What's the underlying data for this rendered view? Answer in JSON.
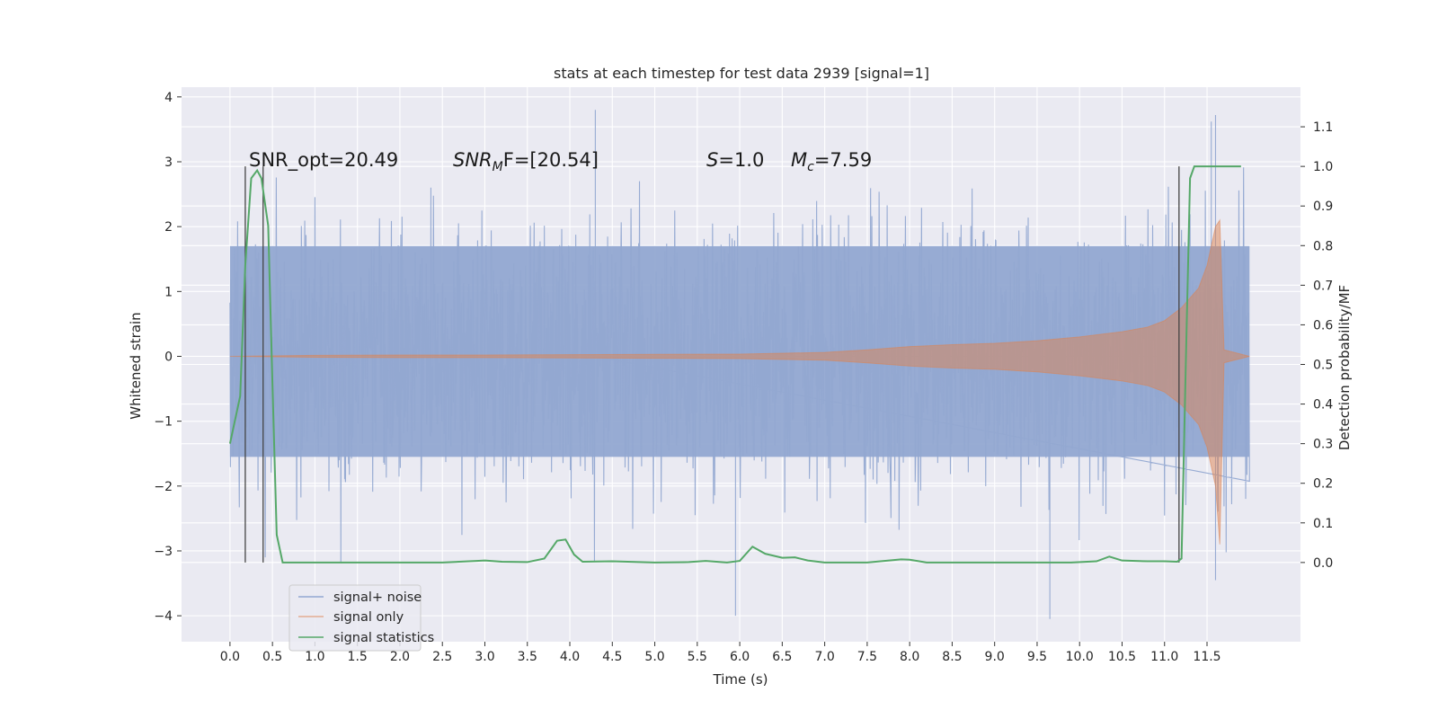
{
  "chart_data": {
    "type": "line",
    "title": "stats at each timestep for test data 2939 [signal=1]",
    "xlabel": "Time (s)",
    "ylabel": "Whitened strain",
    "y2label": "Detection probability/MF",
    "xlim": [
      -0.57,
      12.6
    ],
    "ylim": [
      -4.4,
      4.15
    ],
    "y2lim": [
      -0.2,
      1.2
    ],
    "x_ticks": [
      "0.0",
      "0.5",
      "1.0",
      "1.5",
      "2.0",
      "2.5",
      "3.0",
      "3.5",
      "4.0",
      "4.5",
      "5.0",
      "5.5",
      "6.0",
      "6.5",
      "7.0",
      "7.5",
      "8.0",
      "8.5",
      "9.0",
      "9.5",
      "10.0",
      "10.5",
      "11.0",
      "11.5"
    ],
    "y_ticks": [
      "−4",
      "−3",
      "−2",
      "−1",
      "0",
      "1",
      "2",
      "3",
      "4"
    ],
    "y2_ticks": [
      "0.0",
      "0.1",
      "0.2",
      "0.3",
      "0.4",
      "0.5",
      "0.6",
      "0.7",
      "0.8",
      "0.9",
      "1.0",
      "1.1"
    ],
    "grid": true,
    "legend_position": "lower-left",
    "annotations": {
      "snr_opt": "SNR_opt=20.49",
      "snr_mf_base": "SNR",
      "snr_mf_sub": "M",
      "snr_mf_rest": "F=[20.54]",
      "s_italic": "S",
      "s_rest": "=1.0",
      "mc_italic": "M",
      "mc_sub": "c",
      "mc_rest": "=7.59"
    },
    "series": [
      {
        "name": "signal+ noise",
        "color": "#92a8d1",
        "x_range": [
          0.0,
          12.0
        ],
        "noise_std": 0.95,
        "envelope": [
          -1.55,
          1.7
        ],
        "extreme_points": [
          [
            4.3,
            3.8
          ],
          [
            11.6,
            3.72
          ],
          [
            11.55,
            3.62
          ],
          [
            5.95,
            -4.0
          ],
          [
            9.65,
            -4.05
          ],
          [
            11.6,
            -3.45
          ]
        ]
      },
      {
        "name": "signal only",
        "color": "#dd8452",
        "points": [
          [
            0.0,
            0.0
          ],
          [
            1.0,
            0.015
          ],
          [
            2.0,
            0.02
          ],
          [
            3.0,
            0.02
          ],
          [
            4.0,
            0.025
          ],
          [
            5.0,
            0.03
          ],
          [
            6.0,
            0.035
          ],
          [
            7.0,
            0.06
          ],
          [
            7.5,
            0.1
          ],
          [
            8.0,
            0.15
          ],
          [
            8.5,
            0.18
          ],
          [
            9.0,
            0.2
          ],
          [
            9.5,
            0.24
          ],
          [
            10.0,
            0.3
          ],
          [
            10.5,
            0.38
          ],
          [
            10.8,
            0.45
          ],
          [
            11.0,
            0.55
          ],
          [
            11.2,
            0.75
          ],
          [
            11.4,
            1.05
          ],
          [
            11.5,
            1.4
          ],
          [
            11.6,
            2.0
          ],
          [
            11.65,
            2.1
          ],
          [
            11.7,
            0.1
          ],
          [
            12.0,
            0.0
          ]
        ]
      },
      {
        "name": "signal statistics",
        "color": "#55a868",
        "points": [
          [
            0.0,
            0.3
          ],
          [
            0.12,
            0.42
          ],
          [
            0.18,
            0.75
          ],
          [
            0.25,
            0.97
          ],
          [
            0.32,
            0.99
          ],
          [
            0.37,
            0.97
          ],
          [
            0.45,
            0.85
          ],
          [
            0.5,
            0.45
          ],
          [
            0.55,
            0.07
          ],
          [
            0.62,
            0.0
          ],
          [
            1.0,
            0.0
          ],
          [
            2.0,
            0.0
          ],
          [
            2.5,
            0.0
          ],
          [
            2.9,
            0.004
          ],
          [
            3.0,
            0.005
          ],
          [
            3.2,
            0.002
          ],
          [
            3.5,
            0.001
          ],
          [
            3.7,
            0.01
          ],
          [
            3.85,
            0.055
          ],
          [
            3.95,
            0.058
          ],
          [
            4.05,
            0.02
          ],
          [
            4.15,
            0.002
          ],
          [
            4.5,
            0.003
          ],
          [
            5.0,
            0.0
          ],
          [
            5.4,
            0.001
          ],
          [
            5.6,
            0.004
          ],
          [
            5.85,
            0.0
          ],
          [
            6.0,
            0.004
          ],
          [
            6.1,
            0.028
          ],
          [
            6.15,
            0.04
          ],
          [
            6.3,
            0.022
          ],
          [
            6.5,
            0.012
          ],
          [
            6.65,
            0.013
          ],
          [
            6.8,
            0.005
          ],
          [
            7.0,
            0.0
          ],
          [
            7.5,
            0.0
          ],
          [
            7.9,
            0.008
          ],
          [
            8.0,
            0.007
          ],
          [
            8.2,
            0.0
          ],
          [
            9.0,
            0.0
          ],
          [
            9.4,
            0.0
          ],
          [
            9.6,
            0.0
          ],
          [
            9.9,
            0.0
          ],
          [
            10.2,
            0.003
          ],
          [
            10.35,
            0.015
          ],
          [
            10.5,
            0.005
          ],
          [
            10.8,
            0.003
          ],
          [
            11.0,
            0.003
          ],
          [
            11.15,
            0.002
          ],
          [
            11.2,
            0.01
          ],
          [
            11.25,
            0.5
          ],
          [
            11.3,
            0.97
          ],
          [
            11.35,
            1.0
          ],
          [
            11.5,
            1.0
          ],
          [
            11.9,
            1.0
          ]
        ]
      }
    ],
    "vertical_lines": [
      0.18,
      0.39,
      11.17
    ]
  }
}
